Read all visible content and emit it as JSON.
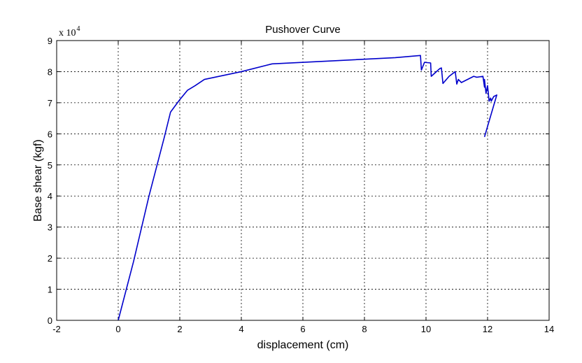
{
  "chart_data": {
    "type": "line",
    "title": "Pushover Curve",
    "xlabel": "displacement (cm)",
    "ylabel": "Base shear (kgf)",
    "y_multiplier_base": "x 10",
    "y_multiplier_exp": "4",
    "xlim": [
      -2,
      14
    ],
    "ylim": [
      0,
      9
    ],
    "xticks": [
      -2,
      0,
      2,
      4,
      6,
      8,
      10,
      12,
      14
    ],
    "yticks": [
      0,
      1,
      2,
      3,
      4,
      5,
      6,
      7,
      8,
      9
    ],
    "grid": true,
    "series_color": "#0000cc",
    "series": [
      {
        "x": [
          0,
          0.5,
          1.0,
          1.5,
          1.7,
          2.0,
          2.25,
          2.5,
          2.8,
          4.0,
          5.0,
          7.0,
          9.0,
          9.82,
          9.85,
          9.95,
          10.15,
          10.17,
          10.45,
          10.5,
          10.55,
          10.75,
          10.95,
          11.0,
          11.05,
          11.15,
          11.55,
          11.65,
          11.85,
          11.9,
          11.9,
          11.95,
          12.0,
          12.05,
          12.1,
          12.12,
          12.2,
          12.3,
          11.9
        ],
        "y": [
          0,
          1.9,
          4.0,
          5.9,
          6.7,
          7.1,
          7.4,
          7.55,
          7.75,
          8.0,
          8.25,
          8.35,
          8.45,
          8.52,
          8.05,
          8.3,
          8.28,
          7.85,
          8.1,
          8.12,
          7.62,
          7.85,
          8.0,
          7.6,
          7.75,
          7.65,
          7.85,
          7.82,
          7.85,
          7.5,
          7.75,
          7.3,
          7.55,
          7.05,
          7.15,
          7.05,
          7.2,
          7.25,
          5.9
        ]
      }
    ]
  }
}
